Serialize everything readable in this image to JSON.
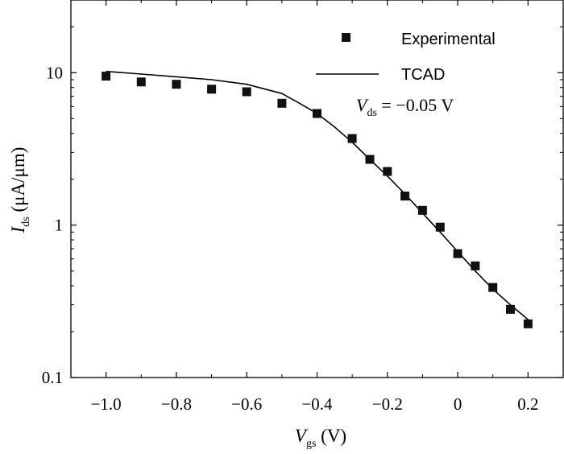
{
  "chart_data": {
    "type": "scatter",
    "yscale": "log",
    "xlabel": {
      "symbol": "V",
      "subscript": "gs",
      "unit": " (V)"
    },
    "ylabel": {
      "symbol": "I",
      "subscript": "ds",
      "unit": " (μA/μm)"
    },
    "xlim": [
      -1.1,
      0.3
    ],
    "ylim": [
      0.1,
      30
    ],
    "x_ticks": [
      -1.0,
      -0.8,
      -0.6,
      -0.4,
      -0.2,
      0,
      0.2
    ],
    "x_tick_labels": [
      "−1.0",
      "−0.8",
      "−0.6",
      "−0.4",
      "−0.2",
      "0",
      "0.2"
    ],
    "y_ticks": [
      0.1,
      1,
      10
    ],
    "y_tick_labels": [
      "0.1",
      "1",
      "10"
    ],
    "legend_position": "top-right",
    "series": [
      {
        "name": "Experimental",
        "kind": "markers",
        "marker": "square",
        "x": [
          -1.0,
          -0.9,
          -0.8,
          -0.7,
          -0.6,
          -0.5,
          -0.4,
          -0.3,
          -0.25,
          -0.2,
          -0.15,
          -0.1,
          -0.05,
          0.0,
          0.05,
          0.1,
          0.15,
          0.2
        ],
        "y": [
          9.5,
          8.7,
          8.4,
          7.8,
          7.5,
          6.3,
          5.4,
          3.7,
          2.7,
          2.25,
          1.55,
          1.25,
          0.97,
          0.65,
          0.54,
          0.39,
          0.28,
          0.225
        ]
      },
      {
        "name": "TCAD",
        "kind": "line",
        "x": [
          -1.0,
          -0.9,
          -0.8,
          -0.7,
          -0.6,
          -0.5,
          -0.45,
          -0.4,
          -0.35,
          -0.3,
          -0.25,
          -0.2,
          -0.15,
          -0.1,
          -0.05,
          0.0,
          0.05,
          0.1,
          0.15,
          0.2
        ],
        "y": [
          10.2,
          9.8,
          9.4,
          9.0,
          8.4,
          7.3,
          6.3,
          5.4,
          4.4,
          3.5,
          2.7,
          2.1,
          1.6,
          1.2,
          0.9,
          0.67,
          0.5,
          0.38,
          0.3,
          0.24
        ]
      }
    ],
    "annotation": {
      "symbol": "V",
      "subscript": "ds",
      "text": " = −0.05 V"
    }
  }
}
